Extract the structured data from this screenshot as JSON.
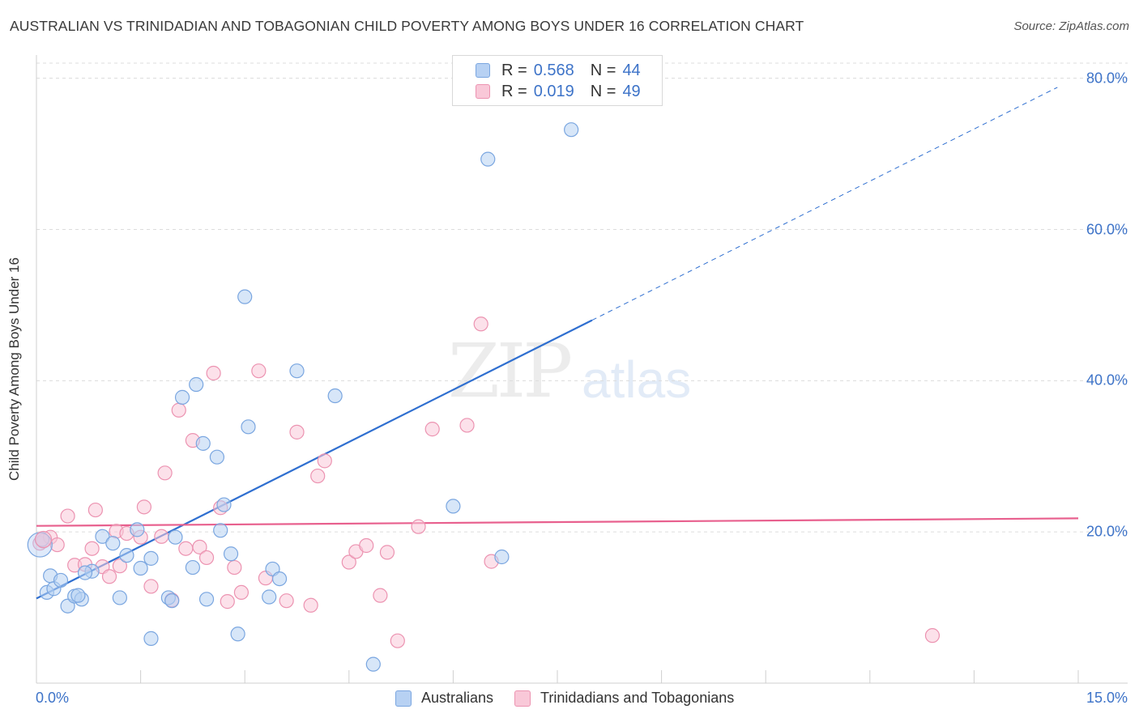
{
  "title": "AUSTRALIAN VS TRINIDADIAN AND TOBAGONIAN CHILD POVERTY AMONG BOYS UNDER 16 CORRELATION CHART",
  "source": "Source: ZipAtlas.com",
  "watermark": {
    "zip": "ZIP",
    "atlas": "atlas"
  },
  "legend_top": {
    "r_label": "R =",
    "n_label": "N =",
    "rows": [
      {
        "r": "0.568",
        "n": "44",
        "color": "#a9c8f0",
        "border": "#7aa6e0"
      },
      {
        "r": "0.019",
        "n": "49",
        "color": "#f7c0d2",
        "border": "#ec93b1"
      }
    ]
  },
  "legend_bottom": [
    {
      "label": "Australians",
      "color": "#b7d1f3",
      "border": "#7aa6e0"
    },
    {
      "label": "Trinidadians and Tobagonians",
      "color": "#f9c8d8",
      "border": "#ec93b1"
    }
  ],
  "chart_data": {
    "type": "scatter",
    "title": "AUSTRALIAN VS TRINIDADIAN AND TOBAGONIAN CHILD POVERTY AMONG BOYS UNDER 16 CORRELATION CHART",
    "xlabel": "",
    "ylabel": "Child Poverty Among Boys Under 16",
    "xlim": [
      0,
      15
    ],
    "ylim": [
      0,
      82
    ],
    "x_tick_labels": [
      "0.0%",
      "15.0%"
    ],
    "y_ticks": [
      20,
      40,
      60,
      80
    ],
    "y_tick_labels": [
      "20.0%",
      "40.0%",
      "60.0%",
      "80.0%"
    ],
    "grid": "horizontal dashed",
    "legend_placement": "top-center",
    "series": [
      {
        "name": "Australians",
        "color": "#7aa6e0",
        "fill": "#b7d1f3",
        "r": 0.568,
        "n": 44,
        "trend": {
          "x0": 0,
          "y0": 11.2,
          "x1": 8.0,
          "y1": 48.0,
          "dashed_to_x": 14.7,
          "dashed_to_y": 78.8
        },
        "points": [
          [
            0.08,
            19.0
          ],
          [
            0.15,
            12.0
          ],
          [
            0.2,
            14.2
          ],
          [
            0.25,
            12.5
          ],
          [
            0.35,
            13.6
          ],
          [
            0.45,
            10.2
          ],
          [
            0.55,
            11.5
          ],
          [
            0.65,
            11.1
          ],
          [
            0.8,
            14.8
          ],
          [
            0.95,
            19.4
          ],
          [
            1.1,
            18.5
          ],
          [
            1.2,
            11.3
          ],
          [
            1.3,
            16.9
          ],
          [
            1.45,
            20.3
          ],
          [
            1.5,
            15.2
          ],
          [
            1.65,
            16.5
          ],
          [
            1.65,
            5.9
          ],
          [
            1.9,
            11.3
          ],
          [
            1.95,
            10.9
          ],
          [
            2.0,
            19.3
          ],
          [
            2.1,
            37.8
          ],
          [
            2.25,
            15.3
          ],
          [
            2.3,
            39.5
          ],
          [
            2.4,
            31.7
          ],
          [
            2.45,
            11.1
          ],
          [
            2.6,
            29.9
          ],
          [
            2.65,
            20.2
          ],
          [
            2.7,
            23.6
          ],
          [
            2.8,
            17.1
          ],
          [
            2.9,
            6.5
          ],
          [
            3.0,
            51.1
          ],
          [
            3.05,
            33.9
          ],
          [
            3.35,
            11.4
          ],
          [
            3.4,
            15.1
          ],
          [
            3.5,
            13.8
          ],
          [
            3.75,
            41.3
          ],
          [
            4.3,
            38.0
          ],
          [
            4.85,
            2.5
          ],
          [
            6.0,
            23.4
          ],
          [
            6.5,
            69.3
          ],
          [
            6.7,
            16.7
          ],
          [
            7.7,
            73.2
          ],
          [
            0.6,
            11.6
          ],
          [
            0.7,
            14.6
          ]
        ]
      },
      {
        "name": "Trinidadians and Tobagonians",
        "color": "#ec93b1",
        "fill": "#f9c8d8",
        "r": 0.019,
        "n": 49,
        "trend": {
          "x0": 0,
          "y0": 20.8,
          "x1": 15.0,
          "y1": 21.8
        },
        "points": [
          [
            0.05,
            18.5
          ],
          [
            0.1,
            18.8
          ],
          [
            0.2,
            19.3
          ],
          [
            0.3,
            18.3
          ],
          [
            0.45,
            22.1
          ],
          [
            0.55,
            15.6
          ],
          [
            0.7,
            15.7
          ],
          [
            0.8,
            17.8
          ],
          [
            0.85,
            22.9
          ],
          [
            0.95,
            15.4
          ],
          [
            1.05,
            14.1
          ],
          [
            1.15,
            20.1
          ],
          [
            1.2,
            15.5
          ],
          [
            1.3,
            19.8
          ],
          [
            1.5,
            19.3
          ],
          [
            1.55,
            23.3
          ],
          [
            1.65,
            12.8
          ],
          [
            1.8,
            19.4
          ],
          [
            1.85,
            27.8
          ],
          [
            1.95,
            11.0
          ],
          [
            2.05,
            36.1
          ],
          [
            2.15,
            17.8
          ],
          [
            2.25,
            32.1
          ],
          [
            2.35,
            18.0
          ],
          [
            2.45,
            16.6
          ],
          [
            2.55,
            41.0
          ],
          [
            2.65,
            23.2
          ],
          [
            2.75,
            10.8
          ],
          [
            2.85,
            15.3
          ],
          [
            2.95,
            12.0
          ],
          [
            3.2,
            41.3
          ],
          [
            3.3,
            13.9
          ],
          [
            3.6,
            10.9
          ],
          [
            3.75,
            33.2
          ],
          [
            3.95,
            10.3
          ],
          [
            4.05,
            27.4
          ],
          [
            4.15,
            29.4
          ],
          [
            4.5,
            16.0
          ],
          [
            4.6,
            17.4
          ],
          [
            4.75,
            18.2
          ],
          [
            4.95,
            11.6
          ],
          [
            5.05,
            17.3
          ],
          [
            5.2,
            5.6
          ],
          [
            5.5,
            20.7
          ],
          [
            5.7,
            33.6
          ],
          [
            6.2,
            34.1
          ],
          [
            6.4,
            47.5
          ],
          [
            6.55,
            16.1
          ],
          [
            12.9,
            6.3
          ]
        ]
      }
    ]
  }
}
